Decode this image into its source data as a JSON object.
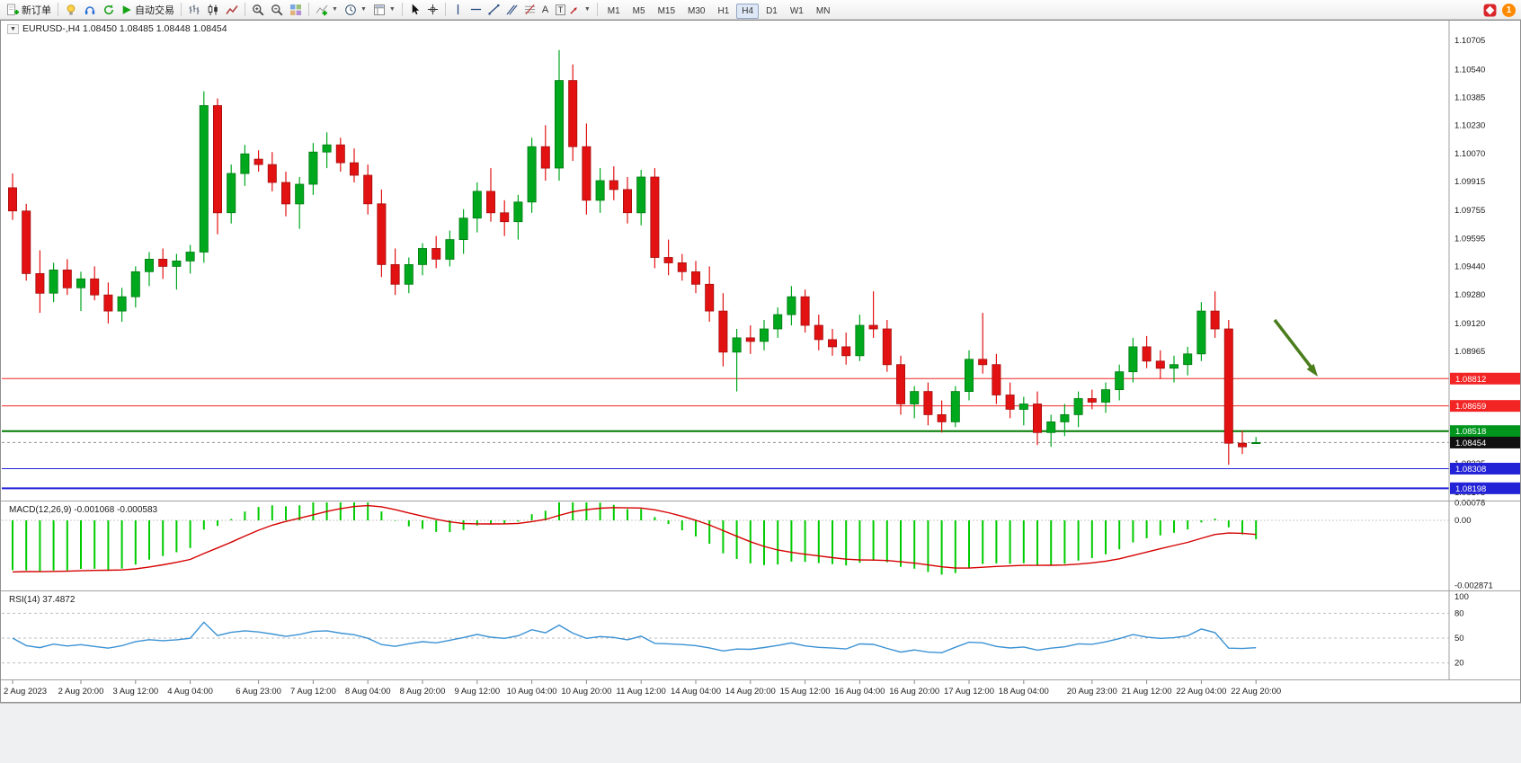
{
  "toolbar": {
    "new_order_label": "新订单",
    "auto_trading_label": "自动交易",
    "text_tool": "A",
    "label_tool": "T",
    "notification_count": "1",
    "timeframes": [
      "M1",
      "M5",
      "M15",
      "M30",
      "H1",
      "H4",
      "D1",
      "W1",
      "MN"
    ],
    "active_timeframe": "H4",
    "icons": [
      "new-order-icon",
      "market-watch-icon",
      "navigator-icon",
      "refresh-icon",
      "auto-trading-icon",
      "bar-chart-icon",
      "candlestick-chart-icon",
      "line-chart-icon",
      "zoom-in-icon",
      "zoom-out-icon",
      "tile-windows-icon",
      "indicators-icon",
      "periods-icon",
      "templates-icon",
      "cursor-icon",
      "crosshair-icon",
      "vertical-line-icon",
      "horizontal-line-icon",
      "trendline-icon",
      "channel-icon",
      "fibonacci-icon",
      "text-icon",
      "label-icon",
      "arrows-icon",
      "community-icon",
      "notification-badge"
    ]
  },
  "chart": {
    "title_line": "EURUSD-,H4 1.08450 1.08485 1.08448 1.08454",
    "symbol": "EURUSD-",
    "timeframe": "H4",
    "ohlc": {
      "open": "1.08450",
      "high": "1.08485",
      "low": "1.08448",
      "close": "1.08454"
    },
    "colors": {
      "bull": "#00a81e",
      "bear": "#e31212",
      "bull_edge": "#007a10",
      "bear_edge": "#a50d0d"
    },
    "price_axis_ticks": [
      1.10705,
      1.1054,
      1.10385,
      1.1023,
      1.1007,
      1.09915,
      1.09755,
      1.09595,
      1.0944,
      1.0928,
      1.0912,
      1.08965,
      1.0881,
      1.0865,
      1.0849,
      1.08335,
      1.08175
    ],
    "levels": [
      {
        "price": 1.08812,
        "label": "1.08812",
        "color": "#f22424",
        "width": 1
      },
      {
        "price": 1.08659,
        "label": "1.08659",
        "color": "#f22424",
        "width": 1
      },
      {
        "price": 1.08518,
        "label": "1.08518",
        "color": "#007a00",
        "badge": "#00961e",
        "width": 2
      },
      {
        "price": 1.08454,
        "label": "1.08454",
        "color": "#909090",
        "badge": "#111111",
        "width": 1,
        "dash": true
      },
      {
        "price": 1.08308,
        "label": "1.08308",
        "color": "#2222d6",
        "width": 1
      },
      {
        "price": 1.08198,
        "label": "1.08198",
        "color": "#2222d6",
        "width": 2
      }
    ],
    "candles": [
      [
        1.0988,
        1.0996,
        1.097,
        1.0975
      ],
      [
        1.0975,
        1.0979,
        1.0936,
        1.094
      ],
      [
        1.094,
        1.0953,
        1.0918,
        1.0929
      ],
      [
        1.0929,
        1.0946,
        1.0924,
        1.0942
      ],
      [
        1.0942,
        1.0948,
        1.0928,
        1.0932
      ],
      [
        1.0932,
        1.0941,
        1.0919,
        1.0937
      ],
      [
        1.0937,
        1.0944,
        1.0925,
        1.0928
      ],
      [
        1.0928,
        1.0935,
        1.0912,
        1.0919
      ],
      [
        1.0919,
        1.0932,
        1.0913,
        1.0927
      ],
      [
        1.0927,
        1.0944,
        1.0921,
        1.0941
      ],
      [
        1.0941,
        1.0952,
        1.0933,
        1.0948
      ],
      [
        1.0948,
        1.0954,
        1.0937,
        1.0944
      ],
      [
        1.0944,
        1.0951,
        1.0931,
        1.0947
      ],
      [
        1.0947,
        1.0956,
        1.094,
        1.0952
      ],
      [
        1.0952,
        1.1042,
        1.0946,
        1.1034
      ],
      [
        1.1034,
        1.1038,
        1.0962,
        1.0974
      ],
      [
        1.0974,
        1.1001,
        1.0968,
        1.0996
      ],
      [
        1.0996,
        1.1012,
        1.0989,
        1.1007
      ],
      [
        1.1004,
        1.1009,
        1.0997,
        1.1001
      ],
      [
        1.1001,
        1.1008,
        1.0986,
        1.0991
      ],
      [
        1.0991,
        1.0997,
        1.0972,
        1.0979
      ],
      [
        1.0979,
        1.0994,
        1.0965,
        1.099
      ],
      [
        1.099,
        1.1013,
        1.0984,
        1.1008
      ],
      [
        1.1008,
        1.1019,
        1.0999,
        1.1012
      ],
      [
        1.1012,
        1.1016,
        1.0997,
        1.1002
      ],
      [
        1.1002,
        1.101,
        1.0991,
        1.0995
      ],
      [
        1.0995,
        1.1001,
        1.0973,
        1.0979
      ],
      [
        1.0979,
        1.0987,
        1.0938,
        1.0945
      ],
      [
        1.0945,
        1.0954,
        1.0928,
        1.0934
      ],
      [
        1.0934,
        1.0949,
        1.0929,
        1.0945
      ],
      [
        1.0945,
        1.0957,
        1.0939,
        1.0954
      ],
      [
        1.0954,
        1.0961,
        1.0943,
        1.0948
      ],
      [
        1.0948,
        1.0964,
        1.0944,
        1.0959
      ],
      [
        1.0959,
        1.0976,
        1.0951,
        1.0971
      ],
      [
        1.0971,
        1.0991,
        1.0963,
        1.0986
      ],
      [
        1.0986,
        1.0999,
        1.0969,
        1.0974
      ],
      [
        1.0974,
        1.0981,
        1.0961,
        1.0969
      ],
      [
        1.0969,
        1.0984,
        1.0959,
        1.098
      ],
      [
        1.098,
        1.1016,
        1.0974,
        1.1011
      ],
      [
        1.1011,
        1.1023,
        1.0992,
        1.0999
      ],
      [
        1.0999,
        1.1065,
        1.0992,
        1.1048
      ],
      [
        1.1048,
        1.1057,
        1.1003,
        1.1011
      ],
      [
        1.1011,
        1.1024,
        1.0973,
        1.0981
      ],
      [
        1.0981,
        1.0999,
        1.0974,
        1.0992
      ],
      [
        1.0992,
        1.1,
        1.0981,
        1.0987
      ],
      [
        1.0987,
        1.0994,
        1.0968,
        1.0974
      ],
      [
        1.0974,
        1.0998,
        1.0967,
        1.0994
      ],
      [
        1.0994,
        1.0999,
        1.0943,
        1.0949
      ],
      [
        1.0949,
        1.0959,
        1.0939,
        1.0946
      ],
      [
        1.0946,
        1.0951,
        1.0936,
        1.0941
      ],
      [
        1.0941,
        1.0947,
        1.0929,
        1.0934
      ],
      [
        1.0934,
        1.0944,
        1.0913,
        1.0919
      ],
      [
        1.0919,
        1.0929,
        1.0888,
        1.0896
      ],
      [
        1.0896,
        1.0909,
        1.0874,
        1.0904
      ],
      [
        1.0904,
        1.0911,
        1.0895,
        1.0902
      ],
      [
        1.0902,
        1.0914,
        1.0897,
        1.0909
      ],
      [
        1.0909,
        1.0921,
        1.0904,
        1.0917
      ],
      [
        1.0917,
        1.0933,
        1.0911,
        1.0927
      ],
      [
        1.0927,
        1.0931,
        1.0907,
        1.0911
      ],
      [
        1.0911,
        1.0917,
        1.0897,
        1.0903
      ],
      [
        1.0903,
        1.0909,
        1.0894,
        1.0899
      ],
      [
        1.0899,
        1.0907,
        1.0889,
        1.0894
      ],
      [
        1.0894,
        1.0917,
        1.0891,
        1.0911
      ],
      [
        1.0911,
        1.093,
        1.0904,
        1.0909
      ],
      [
        1.0909,
        1.0914,
        1.0885,
        1.0889
      ],
      [
        1.0889,
        1.0894,
        1.0861,
        1.0867
      ],
      [
        1.0867,
        1.0877,
        1.0859,
        1.0874
      ],
      [
        1.0874,
        1.0879,
        1.0855,
        1.0861
      ],
      [
        1.0861,
        1.0869,
        1.0851,
        1.0857
      ],
      [
        1.0857,
        1.0877,
        1.0854,
        1.0874
      ],
      [
        1.0874,
        1.0897,
        1.0869,
        1.0892
      ],
      [
        1.0892,
        1.0918,
        1.0884,
        1.0889
      ],
      [
        1.0889,
        1.0895,
        1.0867,
        1.0872
      ],
      [
        1.0872,
        1.0879,
        1.0859,
        1.0864
      ],
      [
        1.0864,
        1.0871,
        1.0855,
        1.0867
      ],
      [
        1.0867,
        1.0874,
        1.0844,
        1.0851
      ],
      [
        1.0851,
        1.0861,
        1.0843,
        1.0857
      ],
      [
        1.0857,
        1.0867,
        1.0849,
        1.0861
      ],
      [
        1.0861,
        1.0874,
        1.0854,
        1.087
      ],
      [
        1.087,
        1.0875,
        1.0864,
        1.0868
      ],
      [
        1.0868,
        1.0879,
        1.0862,
        1.0875
      ],
      [
        1.0875,
        1.0889,
        1.0869,
        1.0885
      ],
      [
        1.0885,
        1.0904,
        1.0879,
        1.0899
      ],
      [
        1.0899,
        1.0905,
        1.0887,
        1.0891
      ],
      [
        1.0891,
        1.0897,
        1.0881,
        1.0887
      ],
      [
        1.0887,
        1.0894,
        1.0879,
        1.0889
      ],
      [
        1.0889,
        1.0899,
        1.0883,
        1.0895
      ],
      [
        1.0895,
        1.0924,
        1.0891,
        1.0919
      ],
      [
        1.0919,
        1.093,
        1.0904,
        1.0909
      ],
      [
        1.0909,
        1.0914,
        1.0833,
        1.0845
      ],
      [
        1.0845,
        1.0852,
        1.0839,
        1.0843
      ],
      [
        1.0845,
        1.08485,
        1.08448,
        1.08454
      ]
    ],
    "time_labels": [
      {
        "i": 0,
        "t": "2 Aug 2023"
      },
      {
        "i": 5,
        "t": "2 Aug 20:00"
      },
      {
        "i": 9,
        "t": "3 Aug 12:00"
      },
      {
        "i": 13,
        "t": "4 Aug 04:00"
      },
      {
        "i": 18,
        "t": "6 Aug 23:00"
      },
      {
        "i": 22,
        "t": "7 Aug 12:00"
      },
      {
        "i": 26,
        "t": "8 Aug 04:00"
      },
      {
        "i": 30,
        "t": "8 Aug 20:00"
      },
      {
        "i": 34,
        "t": "9 Aug 12:00"
      },
      {
        "i": 38,
        "t": "10 Aug 04:00"
      },
      {
        "i": 42,
        "t": "10 Aug 20:00"
      },
      {
        "i": 46,
        "t": "11 Aug 12:00"
      },
      {
        "i": 50,
        "t": "14 Aug 04:00"
      },
      {
        "i": 54,
        "t": "14 Aug 20:00"
      },
      {
        "i": 58,
        "t": "15 Aug 12:00"
      },
      {
        "i": 62,
        "t": "16 Aug 04:00"
      },
      {
        "i": 66,
        "t": "16 Aug 20:00"
      },
      {
        "i": 70,
        "t": "17 Aug 12:00"
      },
      {
        "i": 74,
        "t": "18 Aug 04:00"
      },
      {
        "i": 79,
        "t": "20 Aug 23:00"
      },
      {
        "i": 83,
        "t": "21 Aug 12:00"
      },
      {
        "i": 87,
        "t": "22 Aug 04:00"
      },
      {
        "i": 91,
        "t": "22 Aug 20:00"
      }
    ],
    "arrow_annotation": {
      "color": "#4a7d1c",
      "direction": "down-right"
    }
  },
  "macd": {
    "label": "MACD(12,26,9) -0.001068 -0.000583",
    "params": "12,26,9",
    "value": "-0.001068",
    "signal_value": "-0.000583",
    "axis_labels": [
      "0.00078",
      "0.00",
      "-0.002871"
    ],
    "histogram_color": "#00cc00",
    "signal_color": "#d60000"
  },
  "rsi": {
    "label": "RSI(14) 37.4872",
    "value": "37.4872",
    "axis_labels": [
      "100",
      "80",
      "50",
      "20"
    ],
    "level_lines": [
      80,
      50,
      20
    ],
    "line_color": "#3b92d4"
  }
}
